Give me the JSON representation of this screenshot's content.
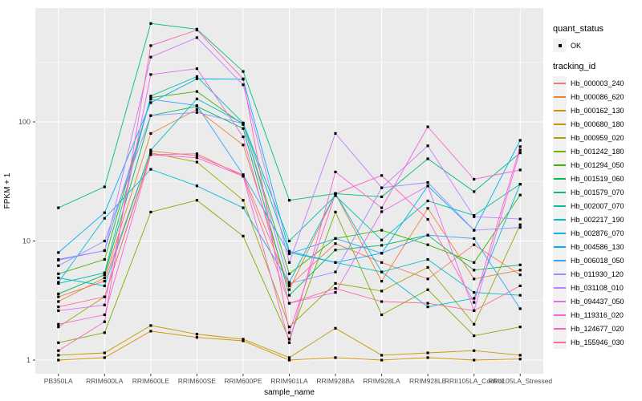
{
  "chart_data": {
    "type": "line",
    "title": "",
    "xlabel": "sample_name",
    "ylabel": "FPKM + 1",
    "yscale": "log10",
    "yticks": [
      1,
      10,
      100
    ],
    "ylim": [
      0.85,
      750
    ],
    "grid": true,
    "panel_bg": "#EBEBEB",
    "marker": "black-square",
    "categories": [
      "PB350LA",
      "RRIM600LA",
      "RRIM600LE",
      "RRIM600SE",
      "RRIM600PE",
      "RRIM901LA",
      "RRIM928BA",
      "RRIM928LA",
      "RRIM928LE",
      "RRII105LA_Control",
      "RRII105LA_Stressed"
    ],
    "series": [
      {
        "name": "Hb_000003_240",
        "color": "#F8766D",
        "values": [
          3.4,
          4.6,
          57,
          52,
          36,
          4.2,
          9.5,
          6.6,
          4.8,
          9.3,
          5.2
        ]
      },
      {
        "name": "Hb_000086_620",
        "color": "#EA8331",
        "values": [
          3.1,
          4.9,
          80,
          127,
          64,
          3.9,
          25,
          4.6,
          18.8,
          4.8,
          5.7
        ]
      },
      {
        "name": "Hb_000162_130",
        "color": "#D89000",
        "values": [
          1.0,
          1.05,
          1.75,
          1.55,
          1.45,
          1.0,
          1.05,
          1.0,
          1.05,
          1.0,
          1.02
        ]
      },
      {
        "name": "Hb_000680_180",
        "color": "#C09B00",
        "values": [
          1.1,
          1.15,
          1.95,
          1.65,
          1.5,
          1.05,
          1.85,
          1.1,
          1.15,
          1.2,
          1.1
        ]
      },
      {
        "name": "Hb_000959_020",
        "color": "#A3A500",
        "values": [
          1.9,
          3.4,
          55,
          46,
          22,
          1.9,
          4.4,
          3.8,
          6.0,
          2.0,
          13.7
        ]
      },
      {
        "name": "Hb_001242_180",
        "color": "#7CAE00",
        "values": [
          1.4,
          1.7,
          17.5,
          22,
          11,
          1.5,
          17.5,
          2.4,
          3.9,
          1.6,
          1.9
        ]
      },
      {
        "name": "Hb_001294_050",
        "color": "#39B600",
        "values": [
          5.3,
          7.0,
          160,
          180,
          95,
          5.3,
          10.5,
          12.3,
          9.3,
          6.6,
          24.3
        ]
      },
      {
        "name": "Hb_001519_060",
        "color": "#00BB4E",
        "values": [
          3.6,
          5.2,
          113,
          135,
          88,
          3.5,
          8.4,
          9.2,
          11.2,
          5.7,
          6.3
        ]
      },
      {
        "name": "Hb_001579_070",
        "color": "#00BF7D",
        "values": [
          19,
          28.5,
          670,
          600,
          265,
          22,
          25,
          23.5,
          49,
          26,
          55
        ]
      },
      {
        "name": "Hb_002007_070",
        "color": "#00C1A3",
        "values": [
          4.4,
          5.4,
          165,
          240,
          98,
          10,
          24,
          10.2,
          21.7,
          16.4,
          30
        ]
      },
      {
        "name": "Hb_002217_190",
        "color": "#00BFC4",
        "values": [
          4.9,
          4.2,
          58,
          156,
          97,
          8.0,
          6.6,
          5.5,
          7.0,
          3.7,
          3.5
        ]
      },
      {
        "name": "Hb_002876_070",
        "color": "#00BAE0",
        "values": [
          4.5,
          15.5,
          40,
          29,
          19,
          4.5,
          25,
          5.5,
          2.8,
          3.3,
          30
        ]
      },
      {
        "name": "Hb_004586_130",
        "color": "#00B0F6",
        "values": [
          8.0,
          17.3,
          145,
          230,
          228,
          8.2,
          6.6,
          7.9,
          29,
          12.3,
          70
        ]
      },
      {
        "name": "Hb_006018_050",
        "color": "#35A2FF",
        "values": [
          7.0,
          8.3,
          155,
          137,
          36,
          7.8,
          10.5,
          7.9,
          11.2,
          10.5,
          2.7
        ]
      },
      {
        "name": "Hb_011930_120",
        "color": "#9590FF",
        "values": [
          6.2,
          10,
          113,
          120,
          97,
          4.4,
          5.5,
          28,
          31,
          12.3,
          13
        ]
      },
      {
        "name": "Hb_031108_010",
        "color": "#C77CFF",
        "values": [
          6.9,
          8.3,
          350,
          510,
          205,
          6.6,
          80,
          28,
          63,
          16,
          15.3
        ]
      },
      {
        "name": "Hb_094437_050",
        "color": "#E76BF3",
        "values": [
          2.6,
          2.9,
          250,
          280,
          75,
          3.0,
          3.7,
          17.6,
          29,
          2.6,
          58
        ]
      },
      {
        "name": "Hb_119316_020",
        "color": "#FA62DB",
        "values": [
          2.0,
          2.4,
          53,
          50,
          35,
          1.4,
          38,
          19,
          91,
          33,
          39.5
        ]
      },
      {
        "name": "Hb_124677_020",
        "color": "#FF62BC",
        "values": [
          1.2,
          2.1,
          437,
          590,
          230,
          1.7,
          25,
          35.5,
          15.2,
          3.05,
          62
        ]
      },
      {
        "name": "Hb_155946_030",
        "color": "#FF6A98",
        "values": [
          2.8,
          3.4,
          53,
          54,
          35,
          3.0,
          4.0,
          3.1,
          3.0,
          2.6,
          4.2
        ]
      }
    ],
    "legend_position": "right"
  },
  "legend": {
    "quant_status_title": "quant_status",
    "quant_status_ok": "OK",
    "tracking_id_title": "tracking_id"
  },
  "colors": {
    "panel_bg": "#EBEBEB",
    "gridline": "#FFFFFF",
    "axis_text": "#4D4D4D",
    "marker": "#000000",
    "legend_key_bg": "#F2F2F2"
  }
}
